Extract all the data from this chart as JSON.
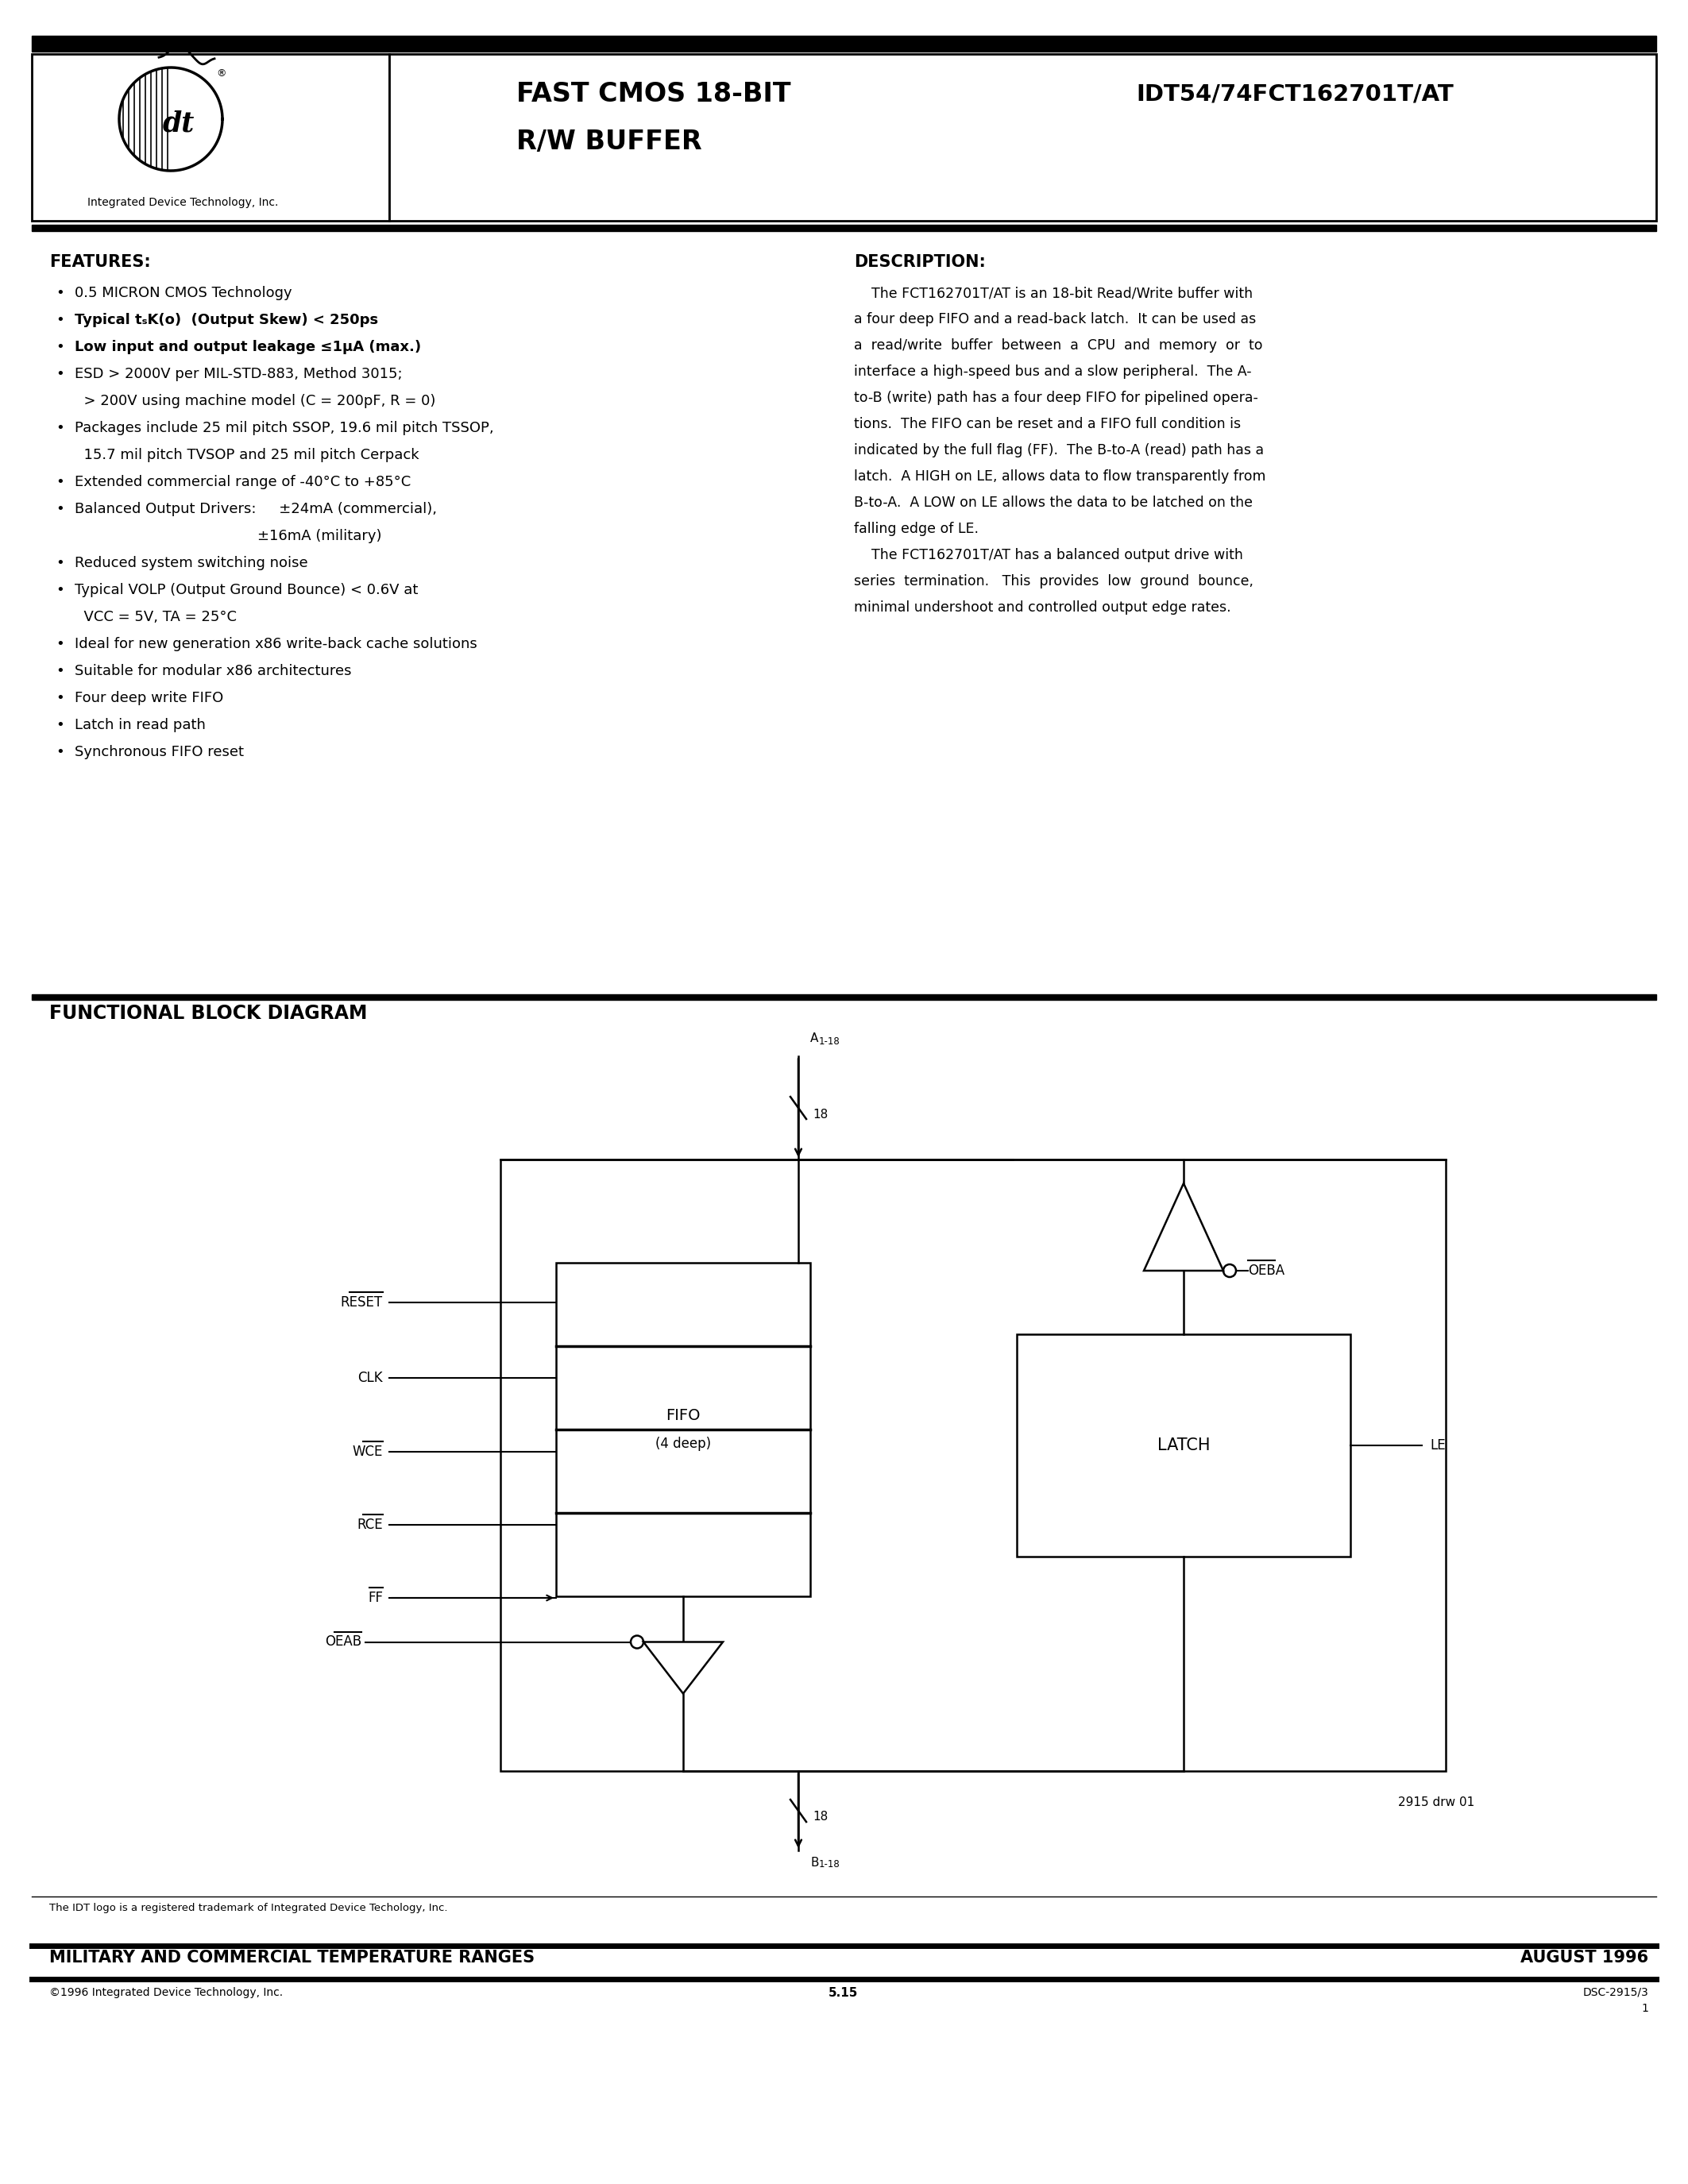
{
  "bg_color": "#ffffff",
  "part_number": "IDT54/74FCT162701T/AT",
  "company": "Integrated Device Technology, Inc.",
  "title_line1": "FAST CMOS 18-BIT",
  "title_line2": "R/W BUFFER",
  "features_title": "FEATURES:",
  "description_title": "DESCRIPTION:",
  "functional_title": "FUNCTIONAL BLOCK DIAGRAM",
  "desc_lines": [
    "    The FCT162701T/AT is an 18-bit Read/Write buffer with",
    "a four deep FIFO and a read-back latch.  It can be used as",
    "a  read/write  buffer  between  a  CPU  and  memory  or  to",
    "interface a high-speed bus and a slow peripheral.  The A-",
    "to-B (write) path has a four deep FIFO for pipelined opera-",
    "tions.  The FIFO can be reset and a FIFO full condition is",
    "indicated by the full flag (FF).  The B-to-A (read) path has a",
    "latch.  A HIGH on LE, allows data to flow transparently from",
    "B-to-A.  A LOW on LE allows the data to be latched on the",
    "falling edge of LE.",
    "    The FCT162701T/AT has a balanced output drive with",
    "series  termination.   This  provides  low  ground  bounce,",
    "minimal undershoot and controlled output edge rates."
  ],
  "footer_trademark": "The IDT logo is a registered trademark of Integrated Device Techology, Inc.",
  "footer_military": "MILITARY AND COMMERCIAL TEMPERATURE RANGES",
  "footer_date": "AUGUST 1996",
  "footer_copy": "©1996 Integrated Device Technology, Inc.",
  "footer_page": "5.15",
  "footer_doc": "DSC-2915/3",
  "footer_doc2": "1",
  "drw_label": "2915 drw 01"
}
